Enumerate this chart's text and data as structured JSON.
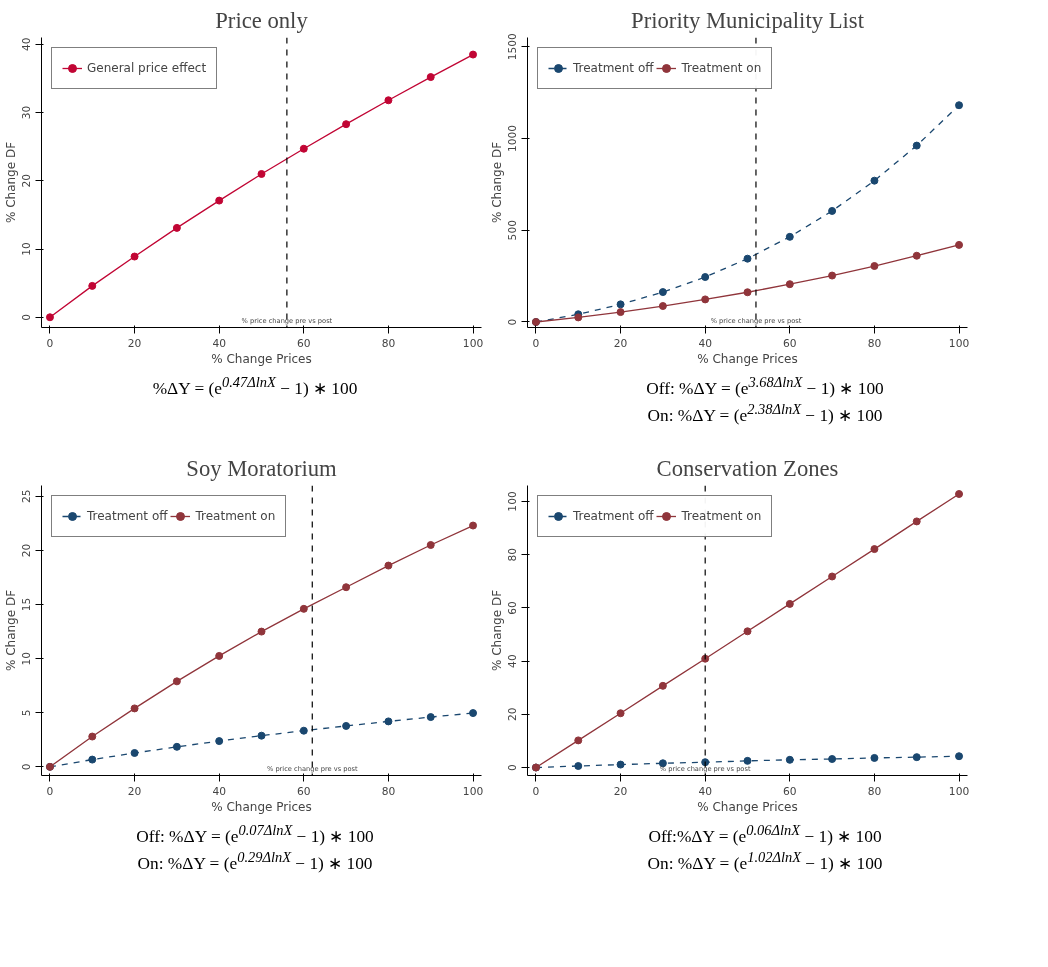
{
  "chart_data": [
    {
      "type": "line",
      "title": "Price only",
      "xlabel": "% Change Prices",
      "ylabel": "% Change DF",
      "x": [
        0,
        10,
        20,
        30,
        40,
        50,
        60,
        70,
        80,
        90,
        100
      ],
      "xlim": [
        -2,
        102
      ],
      "xticks": [
        0,
        20,
        40,
        60,
        80,
        100
      ],
      "ylim": [
        -1.5,
        41
      ],
      "yticks": [
        0,
        10,
        20,
        30,
        40
      ],
      "marker": "circle",
      "legend": "top left",
      "grid": false,
      "series": [
        {
          "name": "General price effect",
          "color": "#c10534",
          "line_style": "solid",
          "values": [
            0,
            4.6,
            8.9,
            13.1,
            17.1,
            21.0,
            24.7,
            28.3,
            31.8,
            35.2,
            38.5
          ]
        }
      ],
      "ref_lines": [
        {
          "axis": "x",
          "value": 56,
          "label": "% price change pre vs post",
          "color": "#000000",
          "line_style": "dashed"
        }
      ],
      "annotations": [
        "%ΔY = (e$^{0.47ΔlnX}$ − 1) ∗ 100"
      ]
    },
    {
      "type": "line",
      "title": "Priority Municipality List",
      "xlabel": "% Change Prices",
      "ylabel": "% Change DF",
      "x": [
        0,
        10,
        20,
        30,
        40,
        50,
        60,
        70,
        80,
        90,
        100
      ],
      "xlim": [
        -2,
        102
      ],
      "xticks": [
        0,
        20,
        40,
        60,
        80,
        100
      ],
      "ylim": [
        -30,
        1550
      ],
      "yticks": [
        0,
        500,
        1000,
        1500
      ],
      "marker": "circle",
      "legend": "top left",
      "grid": false,
      "series": [
        {
          "name": "Treatment off",
          "color": "#1a476f",
          "line_style": "dashed",
          "values": [
            0,
            42,
            96,
            163,
            245,
            345,
            464,
            605,
            770,
            961,
            1181
          ]
        },
        {
          "name": "Treatment on",
          "color": "#90353b",
          "line_style": "solid",
          "values": [
            0,
            25,
            54,
            87,
            123,
            162,
            206,
            253,
            305,
            361,
            420
          ]
        }
      ],
      "ref_lines": [
        {
          "axis": "x",
          "value": 52,
          "label": "% price change pre vs post",
          "color": "#000000",
          "line_style": "dashed"
        }
      ],
      "annotations": [
        "Off: %ΔY = (e$^{3.68ΔlnX}$ − 1) ∗ 100",
        "On: %ΔY = (e$^{2.38ΔlnX}$ − 1) ∗ 100"
      ]
    },
    {
      "type": "line",
      "title": "Soy Moratorium",
      "xlabel": "% Change Prices",
      "ylabel": "% Change DF",
      "x": [
        0,
        10,
        20,
        30,
        40,
        50,
        60,
        70,
        80,
        90,
        100
      ],
      "xlim": [
        -2,
        102
      ],
      "xticks": [
        0,
        20,
        40,
        60,
        80,
        100
      ],
      "ylim": [
        -0.8,
        26
      ],
      "yticks": [
        0,
        5,
        10,
        15,
        20,
        25
      ],
      "marker": "circle",
      "legend": "top left",
      "grid": false,
      "series": [
        {
          "name": "Treatment off",
          "color": "#1a476f",
          "line_style": "dashed",
          "values": [
            0,
            0.67,
            1.28,
            1.85,
            2.38,
            2.88,
            3.34,
            3.78,
            4.2,
            4.6,
            4.97
          ]
        },
        {
          "name": "Treatment on",
          "color": "#90353b",
          "line_style": "solid",
          "values": [
            0,
            2.8,
            5.4,
            7.9,
            10.25,
            12.5,
            14.6,
            16.6,
            18.6,
            20.5,
            22.3
          ]
        }
      ],
      "ref_lines": [
        {
          "axis": "x",
          "value": 62,
          "label": "% price change pre vs post",
          "color": "#000000",
          "line_style": "dashed"
        }
      ],
      "annotations": [
        "Off: %ΔY = (e$^{0.07ΔlnX}$ − 1) ∗ 100",
        "On: %ΔY = (e$^{0.29ΔlnX}$ − 1) ∗ 100"
      ]
    },
    {
      "type": "line",
      "title": "Conservation Zones",
      "xlabel": "% Change Prices",
      "ylabel": "% Change DF",
      "x": [
        0,
        10,
        20,
        30,
        40,
        50,
        60,
        70,
        80,
        90,
        100
      ],
      "xlim": [
        -2,
        102
      ],
      "xticks": [
        0,
        20,
        40,
        60,
        80,
        100
      ],
      "ylim": [
        -3,
        106
      ],
      "yticks": [
        0,
        20,
        40,
        60,
        80,
        100
      ],
      "marker": "circle",
      "legend": "top left",
      "grid": false,
      "series": [
        {
          "name": "Treatment off",
          "color": "#1a476f",
          "line_style": "dashed",
          "values": [
            0,
            0.57,
            1.1,
            1.6,
            2.0,
            2.5,
            2.9,
            3.2,
            3.6,
            3.9,
            4.25
          ]
        },
        {
          "name": "Treatment on",
          "color": "#90353b",
          "line_style": "solid",
          "values": [
            0,
            10.2,
            20.4,
            30.7,
            40.9,
            51.2,
            61.5,
            71.8,
            82.1,
            92.5,
            102.8
          ]
        }
      ],
      "ref_lines": [
        {
          "axis": "x",
          "value": 40,
          "label": "% price change pre vs post",
          "color": "#000000",
          "line_style": "dashed"
        }
      ],
      "annotations": [
        "Off:%ΔY = (e$^{0.06ΔlnX}$ − 1) ∗ 100",
        "On: %ΔY = (e$^{1.02ΔlnX}$ − 1) ∗ 100"
      ]
    }
  ]
}
